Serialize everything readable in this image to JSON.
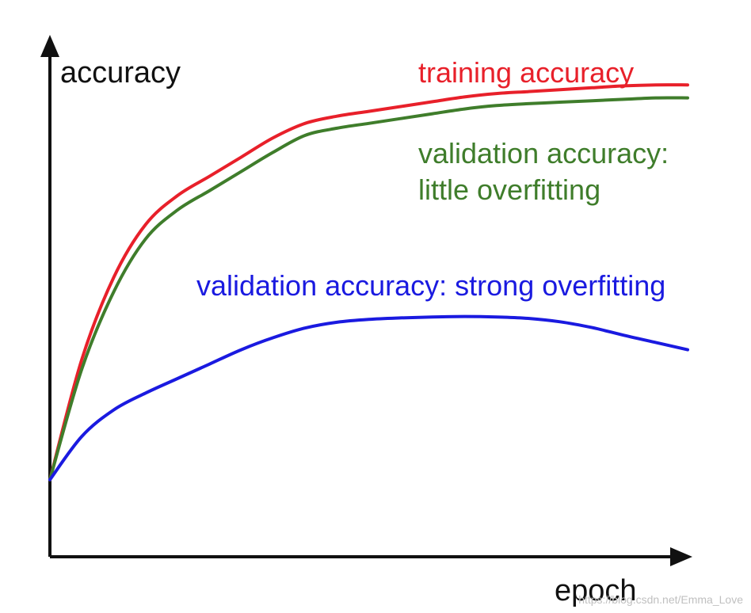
{
  "chart_data": {
    "type": "line",
    "title": "",
    "xlabel": "epoch",
    "ylabel": "accuracy",
    "xlim": [
      0,
      100
    ],
    "ylim": [
      0,
      100
    ],
    "grid": false,
    "series": [
      {
        "name": "training accuracy",
        "color": "#e8202a",
        "x": [
          0,
          5,
          10,
          15,
          20,
          25,
          30,
          35,
          40,
          45,
          50,
          55,
          60,
          65,
          70,
          75,
          80,
          85,
          90,
          95,
          100
        ],
        "y": [
          16,
          41,
          58,
          69,
          75,
          79,
          83,
          87,
          90,
          91.5,
          92.5,
          93.5,
          94.5,
          95.5,
          96.2,
          96.6,
          97,
          97.4,
          97.8,
          98,
          98
        ]
      },
      {
        "name": "validation accuracy:\nlittle overfitting",
        "label_lines": [
          "validation accuracy:",
          "little overfitting"
        ],
        "color": "#3f7d2b",
        "x": [
          0,
          5,
          10,
          15,
          20,
          25,
          30,
          35,
          40,
          45,
          50,
          55,
          60,
          65,
          70,
          75,
          80,
          85,
          90,
          95,
          100
        ],
        "y": [
          16,
          39,
          55,
          66,
          72,
          76,
          80,
          84,
          87.5,
          89,
          90,
          91,
          92,
          93,
          93.7,
          94.1,
          94.4,
          94.7,
          95,
          95.3,
          95.3
        ]
      },
      {
        "name": "validation accuracy: strong overfitting",
        "color": "#1a1ae0",
        "x": [
          0,
          5,
          10,
          15,
          20,
          25,
          30,
          35,
          40,
          45,
          50,
          55,
          60,
          65,
          70,
          75,
          80,
          85,
          90,
          95,
          100
        ],
        "y": [
          16,
          25,
          30.5,
          34,
          37,
          40,
          43,
          45.5,
          47.5,
          48.7,
          49.3,
          49.6,
          49.8,
          49.9,
          49.8,
          49.5,
          48.8,
          47.6,
          46,
          44.5,
          43
        ]
      }
    ],
    "watermark": "https://blog.csdn.net/Emma_Love"
  }
}
